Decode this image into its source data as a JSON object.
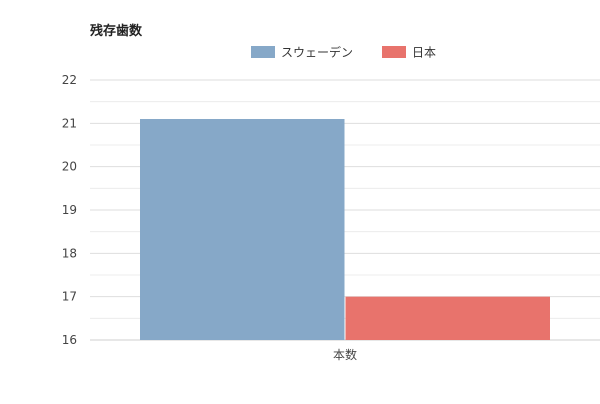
{
  "chart_data": {
    "type": "bar",
    "title": "残存歯数",
    "categories": [
      "本数"
    ],
    "series": [
      {
        "name": "スウェーデン",
        "values": [
          21.1
        ],
        "color": "#86a8c8"
      },
      {
        "name": "日本",
        "values": [
          17.0
        ],
        "color": "#e8736c"
      }
    ],
    "ylim": [
      16,
      22
    ],
    "yticks": [
      16,
      17,
      18,
      19,
      20,
      21,
      22
    ],
    "grid": true,
    "minor_grid": true,
    "legend_position": "top-center"
  }
}
